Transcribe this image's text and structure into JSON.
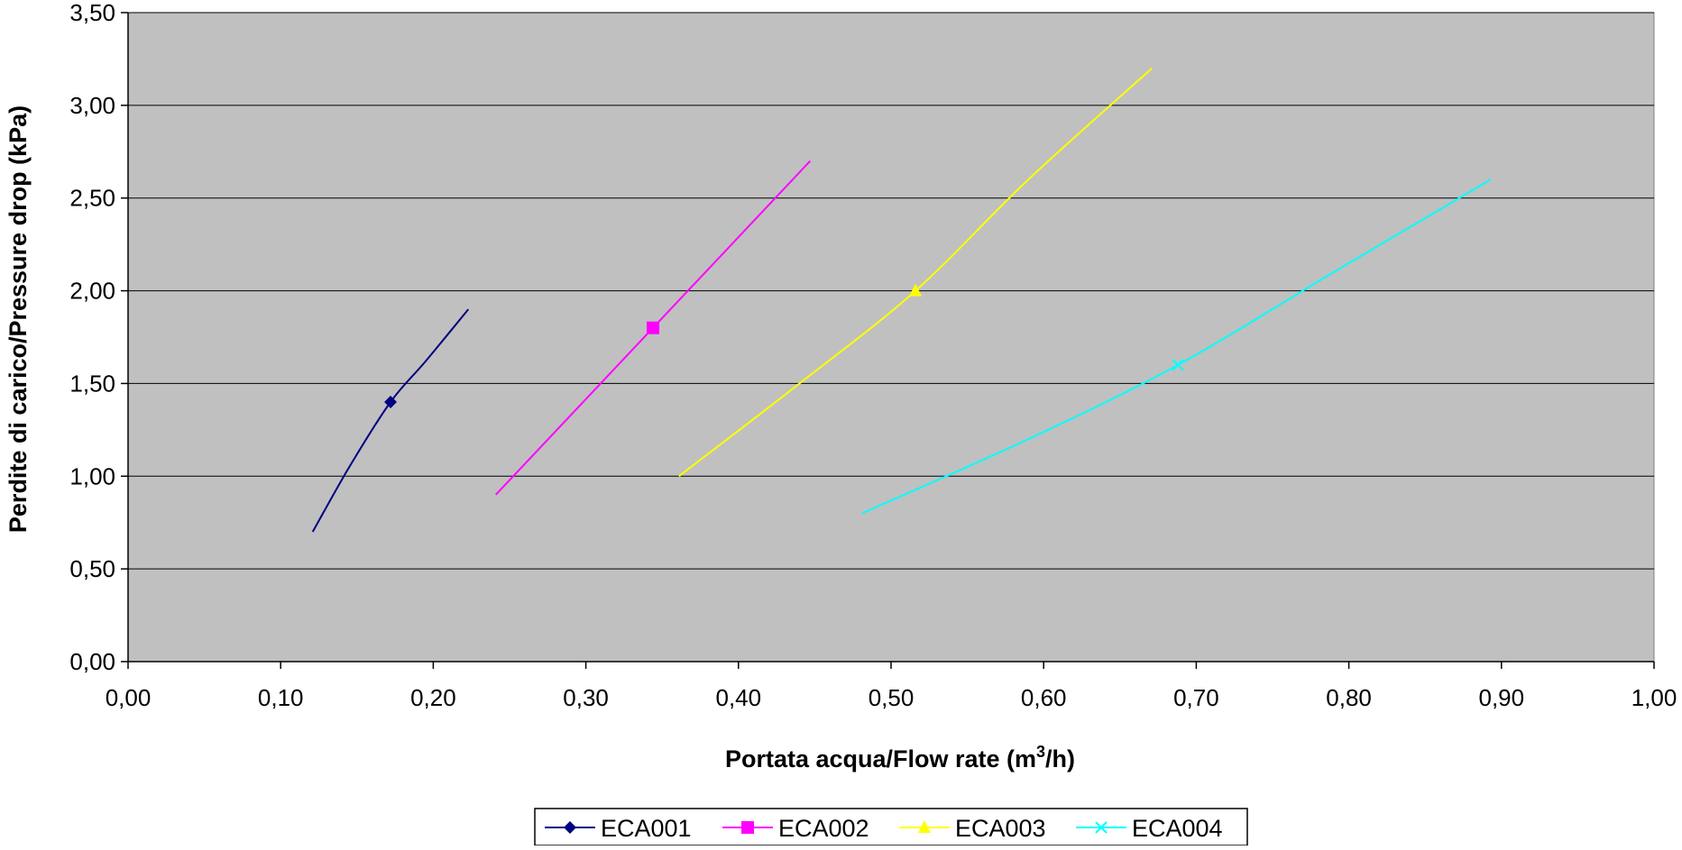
{
  "chart_data": {
    "type": "line",
    "title": "",
    "xlabel": {
      "main": "Portata acqua/Flow rate (m",
      "sup": "3",
      "tail": "/h)"
    },
    "ylabel": "Perdite di carico/Pressure drop (kPa)",
    "xlim": [
      0,
      1.0
    ],
    "ylim": [
      0,
      3.5
    ],
    "x_ticks": [
      {
        "value": 0.0,
        "label": "0,00"
      },
      {
        "value": 0.1,
        "label": "0,10"
      },
      {
        "value": 0.2,
        "label": "0,20"
      },
      {
        "value": 0.3,
        "label": "0,30"
      },
      {
        "value": 0.4,
        "label": "0,40"
      },
      {
        "value": 0.5,
        "label": "0,50"
      },
      {
        "value": 0.6,
        "label": "0,60"
      },
      {
        "value": 0.7,
        "label": "0,70"
      },
      {
        "value": 0.8,
        "label": "0,80"
      },
      {
        "value": 0.9,
        "label": "0,90"
      },
      {
        "value": 1.0,
        "label": "1,00"
      }
    ],
    "y_ticks": [
      {
        "value": 0.0,
        "label": "0,00"
      },
      {
        "value": 0.5,
        "label": "0,50"
      },
      {
        "value": 1.0,
        "label": "1,00"
      },
      {
        "value": 1.5,
        "label": "1,50"
      },
      {
        "value": 2.0,
        "label": "2,00"
      },
      {
        "value": 2.5,
        "label": "2,50"
      },
      {
        "value": 3.0,
        "label": "3,00"
      },
      {
        "value": 3.5,
        "label": "3,50"
      }
    ],
    "grid": "horizontal",
    "plot_background": "#c0c0c0",
    "legend_position": "bottom",
    "series": [
      {
        "name": "ECA001",
        "color": "#000080",
        "marker": "diamond",
        "points": [
          [
            0.121,
            0.7
          ],
          [
            0.145,
            1.05
          ],
          [
            0.172,
            1.4
          ],
          [
            0.195,
            1.62
          ],
          [
            0.223,
            1.9
          ]
        ],
        "marker_points": [
          [
            0.172,
            1.4
          ]
        ]
      },
      {
        "name": "ECA002",
        "color": "#ff00ff",
        "marker": "square",
        "points": [
          [
            0.241,
            0.9
          ],
          [
            0.344,
            1.8
          ],
          [
            0.447,
            2.7
          ]
        ],
        "marker_points": [
          [
            0.344,
            1.8
          ]
        ]
      },
      {
        "name": "ECA003",
        "color": "#ffff00",
        "marker": "triangle",
        "points": [
          [
            0.361,
            1.0
          ],
          [
            0.44,
            1.5
          ],
          [
            0.516,
            2.0
          ],
          [
            0.59,
            2.6
          ],
          [
            0.671,
            3.2
          ]
        ],
        "marker_points": [
          [
            0.516,
            2.0
          ]
        ]
      },
      {
        "name": "ECA004",
        "color": "#00ffff",
        "marker": "x",
        "points": [
          [
            0.481,
            0.8
          ],
          [
            0.59,
            1.2
          ],
          [
            0.688,
            1.6
          ],
          [
            0.79,
            2.1
          ],
          [
            0.893,
            2.6
          ]
        ],
        "marker_points": [
          [
            0.688,
            1.6
          ]
        ]
      }
    ]
  }
}
